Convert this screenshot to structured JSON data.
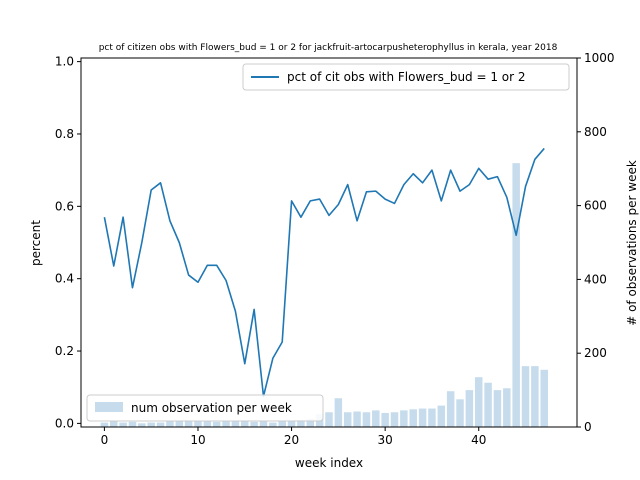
{
  "chart_data": {
    "type": "bar+line",
    "title": "pct of citizen obs with Flowers_bud = 1 or 2 for jackfruit-artocarpusheterophyllus in kerala, year 2018",
    "xlabel": "week index",
    "ylabel_left": "percent",
    "ylabel_right": "# of observations per week",
    "xlim": [
      -2.5,
      50.5
    ],
    "ylim_left": [
      -0.01,
      1.01
    ],
    "ylim_right": [
      0,
      1000
    ],
    "x_ticks": [
      0,
      10,
      20,
      30,
      40
    ],
    "y_left_ticks": [
      "0.0",
      "0.2",
      "0.4",
      "0.6",
      "0.8",
      "1.0"
    ],
    "y_right_ticks": [
      "0",
      "200",
      "400",
      "600",
      "800",
      "1000"
    ],
    "legend_line": "pct of cit obs with Flowers_bud = 1 or 2",
    "legend_bar": "num observation per week",
    "line_color": "#1f77b4",
    "bar_color": "#c6dcec",
    "weeks": [
      0,
      1,
      2,
      3,
      4,
      5,
      6,
      7,
      8,
      9,
      10,
      11,
      12,
      13,
      14,
      15,
      16,
      17,
      18,
      19,
      20,
      21,
      22,
      23,
      24,
      25,
      26,
      27,
      28,
      29,
      30,
      31,
      32,
      33,
      34,
      35,
      36,
      37,
      38,
      39,
      40,
      41,
      42,
      43,
      44,
      45,
      46,
      47
    ],
    "series": [
      {
        "name": "pct of cit obs with Flowers_bud = 1 or 2",
        "axis": "left",
        "values": [
          0.57,
          0.435,
          0.57,
          0.375,
          0.5,
          0.645,
          0.665,
          0.56,
          0.5,
          0.41,
          0.39,
          0.437,
          0.437,
          0.395,
          0.31,
          0.165,
          0.315,
          0.075,
          0.18,
          0.225,
          0.615,
          0.57,
          0.615,
          0.62,
          0.575,
          0.605,
          0.66,
          0.56,
          0.64,
          0.642,
          0.62,
          0.608,
          0.66,
          0.69,
          0.665,
          0.7,
          0.615,
          0.7,
          0.642,
          0.66,
          0.705,
          0.675,
          0.682,
          0.625,
          0.52,
          0.655,
          0.73,
          0.76
        ]
      },
      {
        "name": "num observation per week",
        "axis": "right",
        "values": [
          12,
          15,
          12,
          14,
          10,
          12,
          12,
          15,
          15,
          18,
          17,
          15,
          14,
          17,
          16,
          15,
          14,
          15,
          12,
          18,
          18,
          19,
          22,
          35,
          40,
          78,
          40,
          42,
          40,
          45,
          38,
          40,
          45,
          48,
          50,
          50,
          58,
          97,
          75,
          100,
          135,
          120,
          100,
          105,
          715,
          165,
          165,
          155
        ]
      }
    ]
  }
}
